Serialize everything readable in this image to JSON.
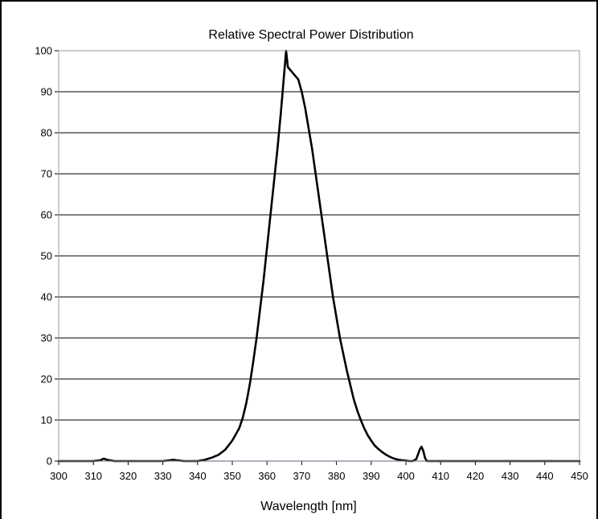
{
  "chart_data": {
    "type": "line",
    "title": "Relative Spectral Power Distribution",
    "xlabel": "Wavelength [nm]",
    "ylabel": "",
    "xlim": [
      300,
      450
    ],
    "ylim": [
      0,
      100
    ],
    "x_ticks": [
      "300",
      "310",
      "320",
      "330",
      "340",
      "350",
      "360",
      "370",
      "380",
      "390",
      "400",
      "410",
      "420",
      "430",
      "440",
      "450"
    ],
    "y_ticks": [
      "0",
      "10",
      "20",
      "30",
      "40",
      "50",
      "60",
      "70",
      "80",
      "90",
      "100"
    ],
    "grid": "horizontal",
    "legend": "none",
    "colors": {
      "line": "#000000",
      "grid": "#000000",
      "baseline": "#1a1a8c",
      "plot_border": "#9a9a9a"
    },
    "series": [
      {
        "x": [
          300,
          305,
          310,
          312,
          313,
          314,
          316,
          320,
          325,
          330,
          332,
          333,
          334,
          336,
          340,
          342,
          344,
          346,
          348,
          350,
          351,
          352,
          353,
          354,
          355,
          356,
          357,
          358,
          359,
          360,
          361,
          362,
          363,
          364,
          365,
          365.5,
          366,
          367,
          368,
          369,
          370,
          371,
          372,
          373,
          374,
          375,
          376,
          377,
          378,
          379,
          380,
          381,
          382,
          383,
          384,
          385,
          386,
          387,
          388,
          389,
          390,
          391,
          392,
          393,
          394,
          395,
          396,
          397,
          398,
          399,
          400,
          401,
          402,
          403,
          404,
          404.5,
          405,
          405.5,
          406,
          407,
          408,
          410,
          420,
          430,
          440,
          450
        ],
        "y": [
          0,
          0,
          0,
          0.2,
          0.6,
          0.3,
          0,
          0,
          0,
          0,
          0.2,
          0.3,
          0.2,
          0,
          0,
          0.3,
          0.8,
          1.5,
          2.8,
          5,
          6.5,
          8,
          10.5,
          14,
          18.5,
          24,
          30,
          37,
          44,
          52,
          60,
          68,
          76,
          85,
          95,
          100,
          96,
          95,
          94,
          93,
          90,
          86,
          81,
          76,
          70,
          64,
          58,
          52,
          46,
          40,
          35,
          30,
          26,
          22,
          18.5,
          15,
          12.3,
          10,
          8,
          6.3,
          5,
          3.8,
          3,
          2.3,
          1.7,
          1.2,
          0.8,
          0.5,
          0.3,
          0.2,
          0.1,
          0,
          0,
          0.5,
          2.8,
          3.5,
          2.5,
          0.8,
          0,
          0,
          0,
          0,
          0,
          0,
          0,
          0
        ]
      }
    ]
  }
}
